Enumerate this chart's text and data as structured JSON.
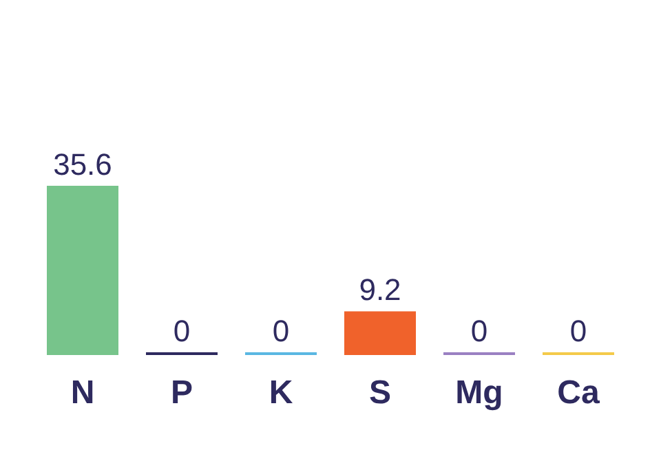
{
  "chart_data": {
    "type": "bar",
    "categories": [
      "N",
      "P",
      "K",
      "S",
      "Mg",
      "Ca"
    ],
    "values": [
      35.6,
      0,
      0,
      9.2,
      0,
      0
    ],
    "colors": [
      "#77c48b",
      "#2e2a5f",
      "#5ab7e2",
      "#f0622b",
      "#9a80c2",
      "#f4ca4a"
    ],
    "data_labels": true
  }
}
